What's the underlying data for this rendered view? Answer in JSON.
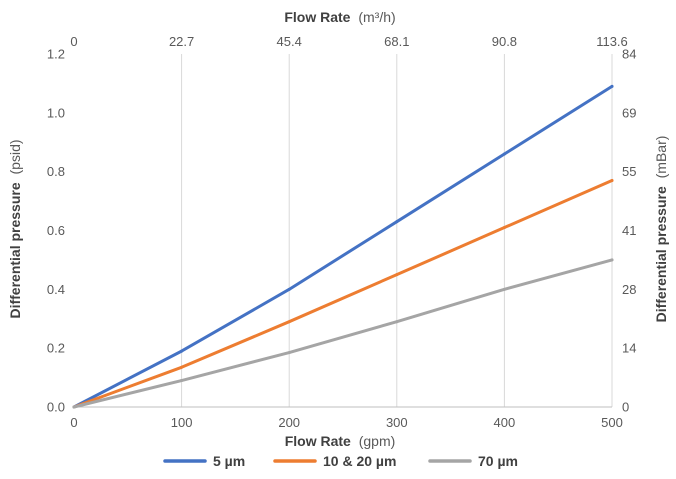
{
  "chart_data": {
    "type": "line",
    "xlabel": {
      "bold": "Flow Rate",
      "unit": "(gpm)"
    },
    "x2label": {
      "bold": "Flow Rate",
      "unit": "(m³/h)"
    },
    "ylabel": {
      "bold": "Differential pressure",
      "unit": "(psid)"
    },
    "y2label": {
      "bold": "Differential pressure",
      "unit": "(mBar)"
    },
    "xlim": [
      0,
      500
    ],
    "ylim": [
      0,
      1.2
    ],
    "x_ticks": [
      "0",
      "100",
      "200",
      "300",
      "400",
      "500"
    ],
    "x_tick_values": [
      0,
      100,
      200,
      300,
      400,
      500
    ],
    "x2_ticks": [
      "0",
      "22.7",
      "45.4",
      "68.1",
      "90.8",
      "113.6"
    ],
    "y_ticks": [
      "0.0",
      "0.2",
      "0.4",
      "0.6",
      "0.8",
      "1.0",
      "1.2"
    ],
    "y_tick_values": [
      0,
      0.2,
      0.4,
      0.6,
      0.8,
      1.0,
      1.2
    ],
    "y2_ticks": [
      "0",
      "14",
      "28",
      "41",
      "55",
      "69",
      "84"
    ],
    "grid": "vertical",
    "legend_position": "bottom",
    "series": [
      {
        "name": "5 µm",
        "color": "#4472c4",
        "x": [
          0,
          100,
          200,
          300,
          400,
          500
        ],
        "y": [
          0,
          0.19,
          0.4,
          0.63,
          0.86,
          1.09
        ]
      },
      {
        "name": "10 & 20 µm",
        "color": "#ed7d31",
        "x": [
          0,
          100,
          200,
          300,
          400,
          500
        ],
        "y": [
          0,
          0.135,
          0.29,
          0.45,
          0.61,
          0.77
        ]
      },
      {
        "name": "70 µm",
        "color": "#a5a5a5",
        "x": [
          0,
          100,
          200,
          300,
          400,
          500
        ],
        "y": [
          0,
          0.09,
          0.185,
          0.29,
          0.4,
          0.5
        ]
      }
    ]
  }
}
